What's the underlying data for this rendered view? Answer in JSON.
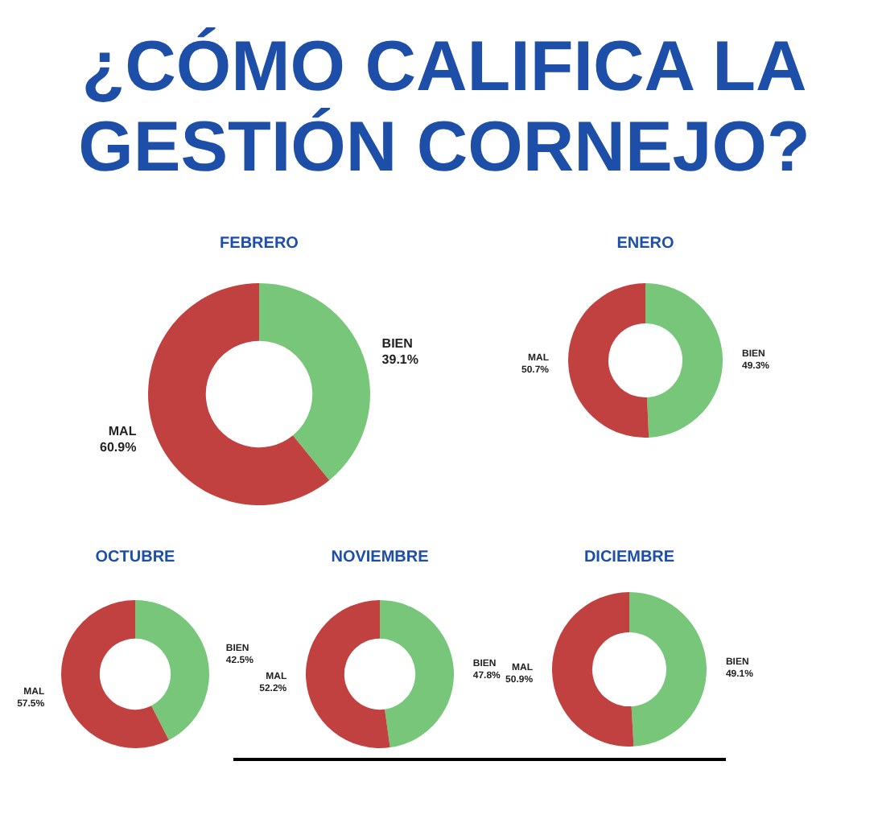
{
  "chart_data": [
    {
      "type": "other",
      "title": "¿CÓMO CALIFICA LA GESTIÓN CORNEJO?"
    },
    {
      "type": "donut",
      "title": "FEBRERO",
      "categories": [
        "BIEN",
        "MAL"
      ],
      "values": [
        39.1,
        60.9
      ],
      "colors": [
        "#77c67a",
        "#c0413f"
      ],
      "data_labels": true,
      "value_labels": [
        "39.1%",
        "60.9%"
      ]
    },
    {
      "type": "donut",
      "title": "ENERO",
      "categories": [
        "BIEN",
        "MAL"
      ],
      "values": [
        49.3,
        50.7
      ],
      "colors": [
        "#77c67a",
        "#c0413f"
      ],
      "data_labels": true,
      "value_labels": [
        "49.3%",
        "50.7%"
      ]
    },
    {
      "type": "donut",
      "title": "OCTUBRE",
      "categories": [
        "BIEN",
        "MAL"
      ],
      "values": [
        42.5,
        57.5
      ],
      "colors": [
        "#77c67a",
        "#c0413f"
      ],
      "data_labels": true,
      "value_labels": [
        "42.5%",
        "57.5%"
      ]
    },
    {
      "type": "donut",
      "title": "NOVIEMBRE",
      "categories": [
        "BIEN",
        "MAL"
      ],
      "values": [
        47.8,
        52.2
      ],
      "colors": [
        "#77c67a",
        "#c0413f"
      ],
      "data_labels": true,
      "value_labels": [
        "47.8%",
        "52.2%"
      ]
    },
    {
      "type": "donut",
      "title": "DICIEMBRE",
      "categories": [
        "BIEN",
        "MAL"
      ],
      "values": [
        49.1,
        50.9
      ],
      "colors": [
        "#77c67a",
        "#c0413f"
      ],
      "data_labels": true,
      "value_labels": [
        "49.1%",
        "50.9%"
      ]
    }
  ]
}
